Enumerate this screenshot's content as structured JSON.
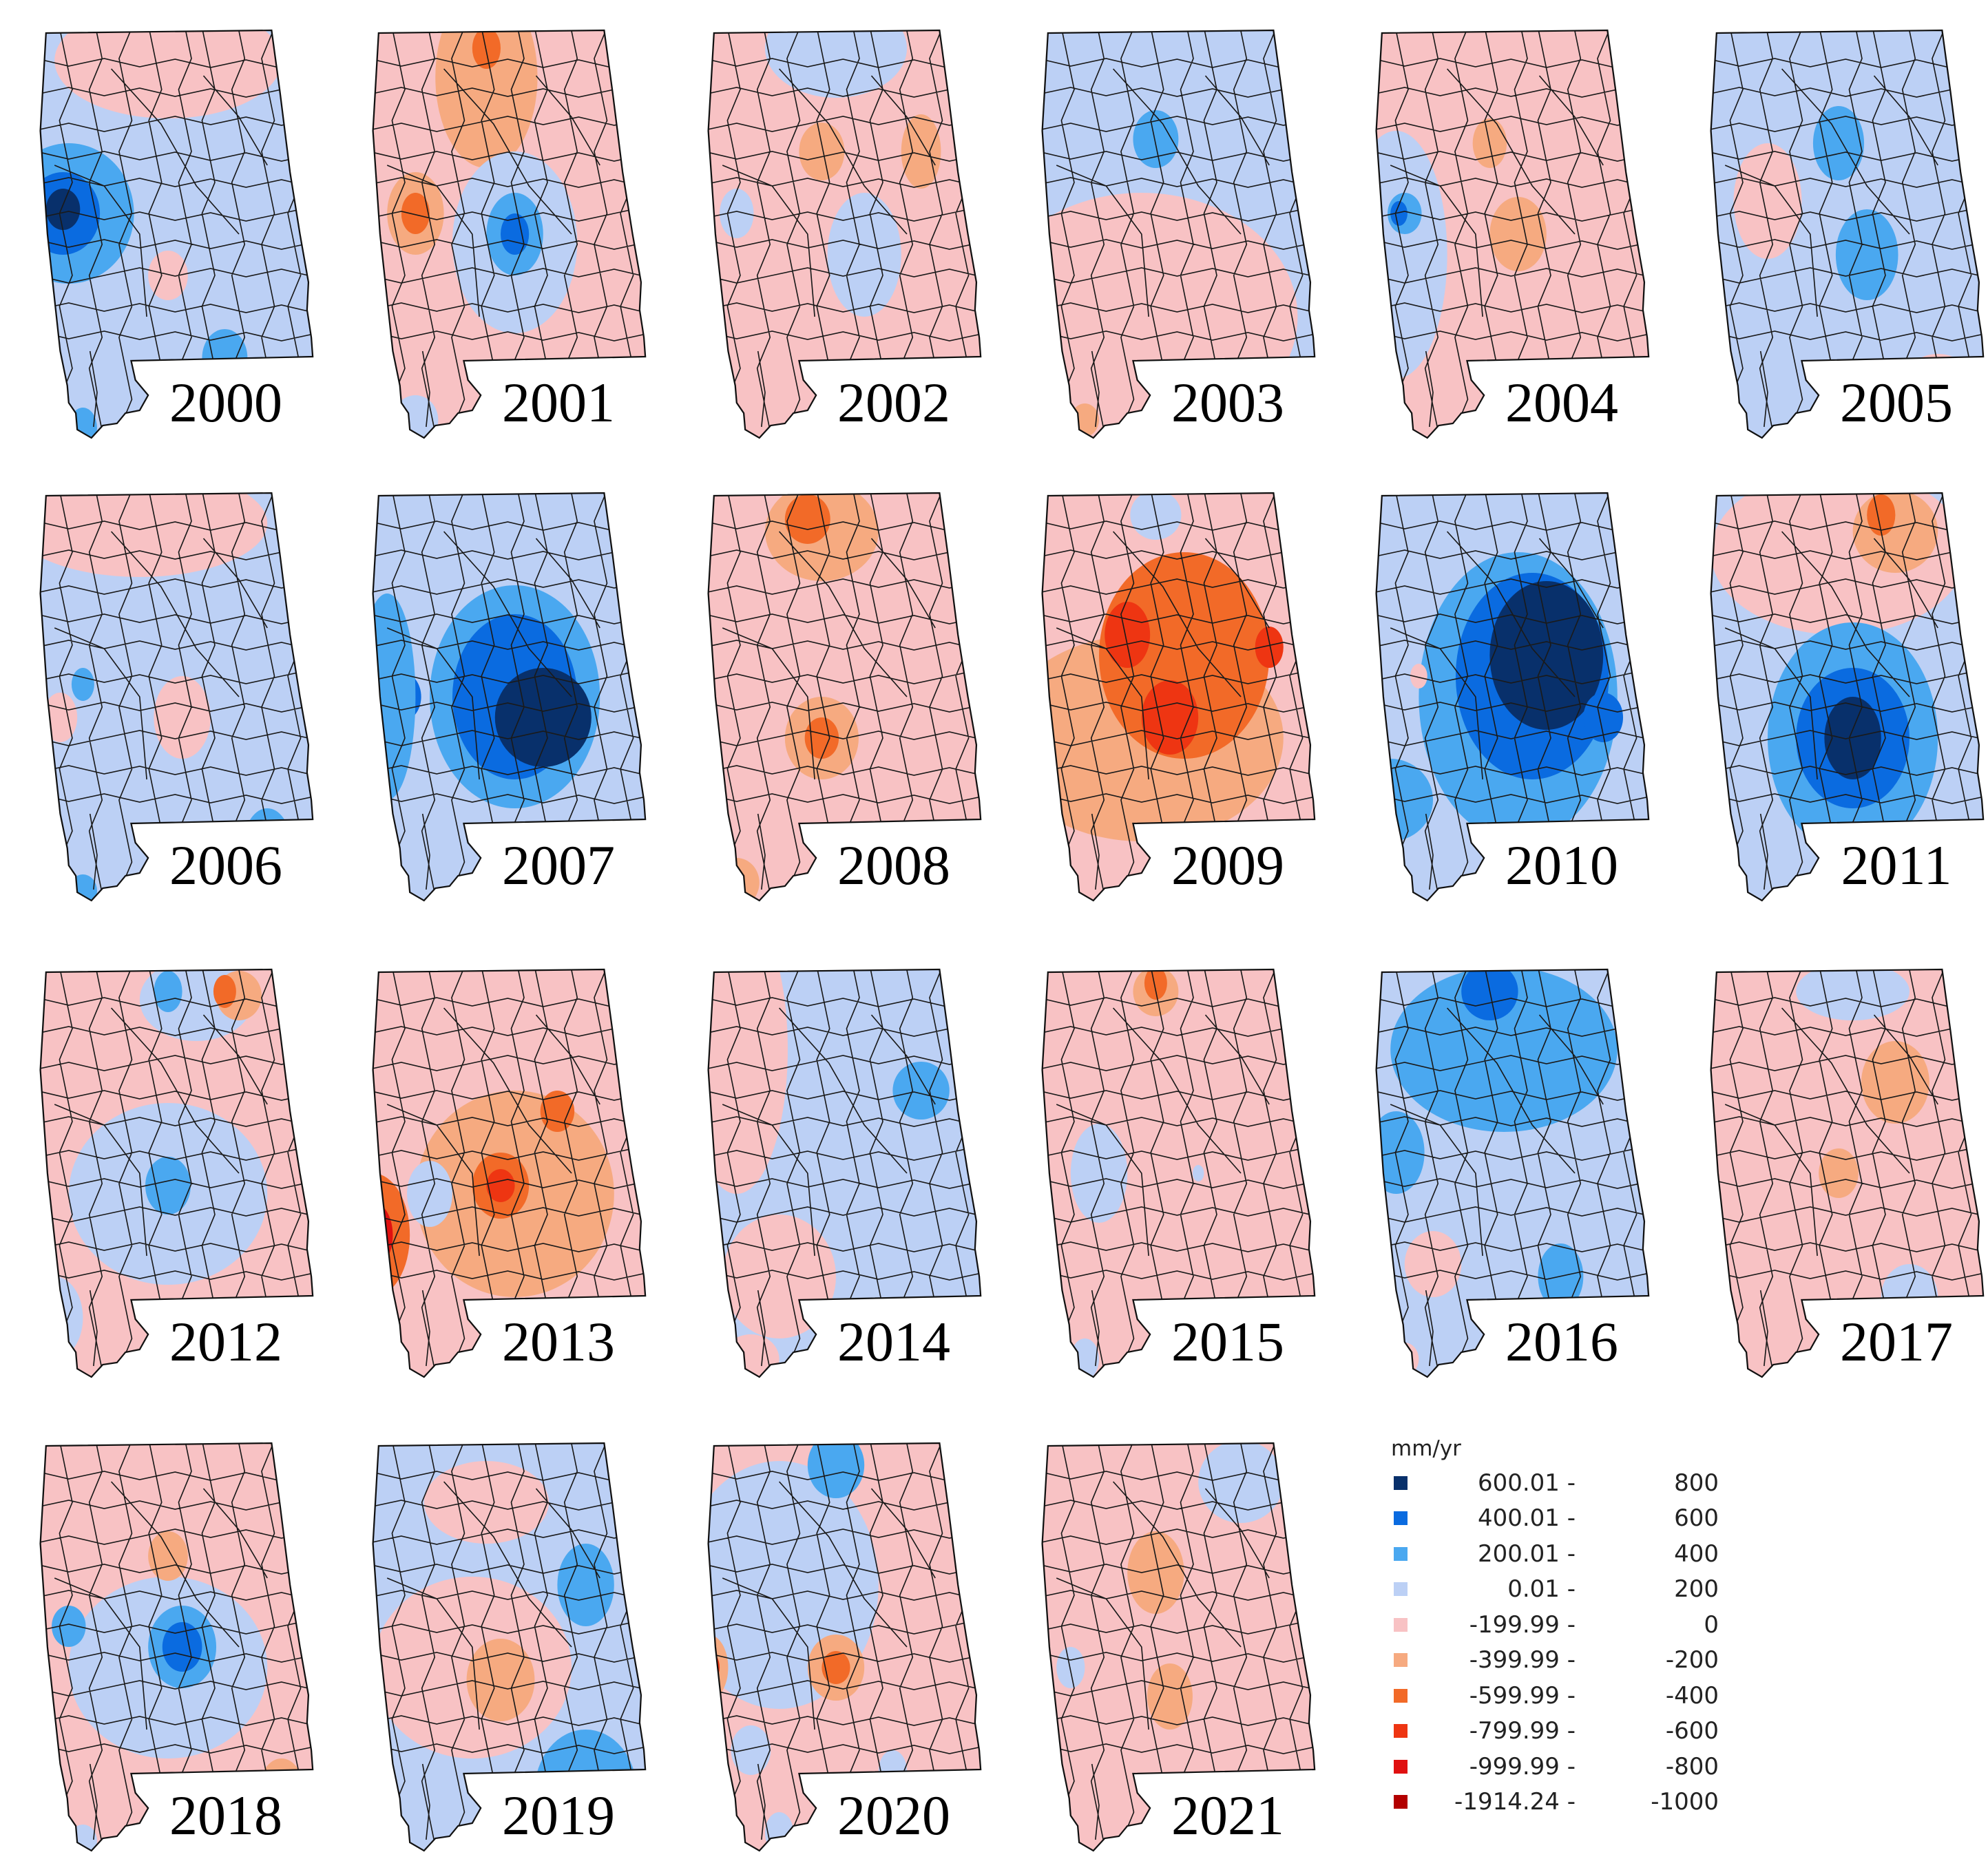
{
  "legend": {
    "title": "mm/yr",
    "entries": [
      {
        "min": "600.01 -",
        "max": "800",
        "color": "#08306b"
      },
      {
        "min": "400.01 -",
        "max": "600",
        "color": "#0a6be0"
      },
      {
        "min": "200.01 -",
        "max": "400",
        "color": "#4aa8f0"
      },
      {
        "min": "0.01 -",
        "max": "200",
        "color": "#bcd0f5"
      },
      {
        "min": "-199.99 -",
        "max": "0",
        "color": "#f8c2c4"
      },
      {
        "min": "-399.99 -",
        "max": "-200",
        "color": "#f6aa80"
      },
      {
        "min": "-599.99 -",
        "max": "-400",
        "color": "#f26a28"
      },
      {
        "min": "-799.99 -",
        "max": "-600",
        "color": "#ee3512"
      },
      {
        "min": "-999.99 -",
        "max": "-800",
        "color": "#e01010"
      },
      {
        "min": "-1914.24 -",
        "max": "-1000",
        "color": "#b30000"
      }
    ]
  },
  "maps": [
    {
      "year": "2000",
      "base": 3,
      "blobs": [
        [
          0.5,
          0.08,
          0.4,
          0.14,
          4
        ],
        [
          0.15,
          0.45,
          0.23,
          0.17,
          2
        ],
        [
          0.13,
          0.45,
          0.13,
          0.1,
          1
        ],
        [
          0.13,
          0.44,
          0.06,
          0.05,
          0
        ],
        [
          0.5,
          0.6,
          0.07,
          0.06,
          4
        ],
        [
          0.7,
          0.8,
          0.08,
          0.07,
          2
        ],
        [
          0.2,
          0.97,
          0.05,
          0.05,
          2
        ]
      ]
    },
    {
      "year": "2001",
      "base": 4,
      "blobs": [
        [
          0.45,
          0.12,
          0.18,
          0.22,
          5
        ],
        [
          0.45,
          0.05,
          0.05,
          0.05,
          6
        ],
        [
          0.2,
          0.45,
          0.1,
          0.1,
          5
        ],
        [
          0.2,
          0.45,
          0.05,
          0.05,
          6
        ],
        [
          0.55,
          0.52,
          0.22,
          0.22,
          3
        ],
        [
          0.55,
          0.5,
          0.1,
          0.1,
          2
        ],
        [
          0.55,
          0.5,
          0.05,
          0.05,
          1
        ],
        [
          0.2,
          0.95,
          0.08,
          0.06,
          3
        ]
      ]
    },
    {
      "year": "2002",
      "base": 4,
      "blobs": [
        [
          0.5,
          0.05,
          0.25,
          0.12,
          3
        ],
        [
          0.45,
          0.3,
          0.08,
          0.07,
          5
        ],
        [
          0.6,
          0.55,
          0.13,
          0.15,
          3
        ],
        [
          0.15,
          0.45,
          0.06,
          0.06,
          3
        ],
        [
          0.8,
          0.3,
          0.07,
          0.09,
          5
        ]
      ]
    },
    {
      "year": "2003",
      "base": 3,
      "blobs": [
        [
          0.4,
          0.7,
          0.55,
          0.3,
          4
        ],
        [
          0.3,
          0.85,
          0.35,
          0.2,
          4
        ],
        [
          0.45,
          0.27,
          0.08,
          0.07,
          2
        ],
        [
          0.8,
          0.85,
          0.05,
          0.05,
          5
        ],
        [
          0.2,
          0.95,
          0.05,
          0.04,
          5
        ]
      ]
    },
    {
      "year": "2004",
      "base": 4,
      "blobs": [
        [
          0.12,
          0.55,
          0.18,
          0.3,
          3
        ],
        [
          0.15,
          0.45,
          0.06,
          0.05,
          2
        ],
        [
          0.13,
          0.45,
          0.03,
          0.03,
          1
        ],
        [
          0.45,
          0.28,
          0.06,
          0.06,
          5
        ],
        [
          0.55,
          0.5,
          0.1,
          0.09,
          5
        ],
        [
          0.8,
          0.85,
          0.05,
          0.05,
          3
        ]
      ]
    },
    {
      "year": "2005",
      "base": 3,
      "blobs": [
        [
          0.25,
          0.42,
          0.12,
          0.14,
          4
        ],
        [
          0.5,
          0.28,
          0.09,
          0.09,
          2
        ],
        [
          0.6,
          0.55,
          0.11,
          0.11,
          2
        ],
        [
          0.85,
          0.86,
          0.12,
          0.07,
          4
        ]
      ]
    },
    {
      "year": "2006",
      "base": 3,
      "blobs": [
        [
          0.4,
          0.08,
          0.45,
          0.13,
          4
        ],
        [
          0.55,
          0.55,
          0.1,
          0.1,
          4
        ],
        [
          0.12,
          0.55,
          0.06,
          0.06,
          4
        ],
        [
          0.2,
          0.47,
          0.04,
          0.04,
          2
        ],
        [
          0.85,
          0.85,
          0.08,
          0.08,
          2
        ],
        [
          0.2,
          0.97,
          0.05,
          0.04,
          2
        ]
      ]
    },
    {
      "year": "2007",
      "base": 3,
      "blobs": [
        [
          0.55,
          0.5,
          0.3,
          0.27,
          2
        ],
        [
          0.55,
          0.5,
          0.22,
          0.2,
          1
        ],
        [
          0.65,
          0.55,
          0.17,
          0.12,
          0
        ],
        [
          0.15,
          0.5,
          0.07,
          0.06,
          1
        ],
        [
          0.1,
          0.5,
          0.1,
          0.25,
          2
        ]
      ]
    },
    {
      "year": "2008",
      "base": 4,
      "blobs": [
        [
          0.45,
          0.1,
          0.2,
          0.12,
          5
        ],
        [
          0.4,
          0.07,
          0.08,
          0.06,
          6
        ],
        [
          0.45,
          0.6,
          0.13,
          0.1,
          5
        ],
        [
          0.45,
          0.6,
          0.06,
          0.05,
          6
        ],
        [
          0.15,
          0.95,
          0.08,
          0.06,
          5
        ],
        [
          0.9,
          0.9,
          0.05,
          0.05,
          6
        ]
      ]
    },
    {
      "year": "2009",
      "base": 4,
      "blobs": [
        [
          0.4,
          0.6,
          0.5,
          0.25,
          5
        ],
        [
          0.55,
          0.4,
          0.3,
          0.25,
          6
        ],
        [
          0.35,
          0.35,
          0.08,
          0.08,
          7
        ],
        [
          0.5,
          0.55,
          0.1,
          0.09,
          7
        ],
        [
          0.85,
          0.38,
          0.05,
          0.05,
          7
        ],
        [
          0.45,
          0.06,
          0.09,
          0.06,
          3
        ],
        [
          0.9,
          0.97,
          0.04,
          0.04,
          3
        ]
      ]
    },
    {
      "year": "2010",
      "base": 3,
      "blobs": [
        [
          0.55,
          0.5,
          0.35,
          0.35,
          2
        ],
        [
          0.6,
          0.45,
          0.27,
          0.25,
          1
        ],
        [
          0.65,
          0.4,
          0.2,
          0.18,
          0
        ],
        [
          0.1,
          0.75,
          0.15,
          0.1,
          2
        ],
        [
          0.2,
          0.45,
          0.03,
          0.03,
          4
        ],
        [
          0.85,
          0.55,
          0.07,
          0.06,
          1
        ]
      ]
    },
    {
      "year": "2011",
      "base": 3,
      "blobs": [
        [
          0.5,
          0.15,
          0.45,
          0.2,
          4
        ],
        [
          0.7,
          0.1,
          0.15,
          0.1,
          5
        ],
        [
          0.65,
          0.06,
          0.05,
          0.05,
          6
        ],
        [
          0.55,
          0.6,
          0.3,
          0.28,
          2
        ],
        [
          0.55,
          0.6,
          0.2,
          0.17,
          1
        ],
        [
          0.55,
          0.6,
          0.1,
          0.1,
          0
        ]
      ]
    },
    {
      "year": "2012",
      "base": 4,
      "blobs": [
        [
          0.5,
          0.55,
          0.35,
          0.22,
          3
        ],
        [
          0.6,
          0.08,
          0.2,
          0.1,
          3
        ],
        [
          0.5,
          0.06,
          0.05,
          0.05,
          2
        ],
        [
          0.75,
          0.07,
          0.08,
          0.06,
          5
        ],
        [
          0.7,
          0.06,
          0.04,
          0.04,
          6
        ],
        [
          0.5,
          0.53,
          0.08,
          0.07,
          2
        ],
        [
          0.1,
          0.85,
          0.1,
          0.1,
          3
        ]
      ]
    },
    {
      "year": "2013",
      "base": 4,
      "blobs": [
        [
          0.55,
          0.55,
          0.35,
          0.25,
          5
        ],
        [
          0.5,
          0.53,
          0.1,
          0.08,
          6
        ],
        [
          0.5,
          0.53,
          0.05,
          0.04,
          7
        ],
        [
          0.05,
          0.65,
          0.13,
          0.15,
          6
        ],
        [
          0.05,
          0.65,
          0.07,
          0.08,
          8
        ],
        [
          0.7,
          0.35,
          0.06,
          0.05,
          6
        ],
        [
          0.25,
          0.55,
          0.08,
          0.08,
          3
        ],
        [
          0.9,
          0.9,
          0.05,
          0.05,
          6
        ]
      ]
    },
    {
      "year": "2014",
      "base": 3,
      "blobs": [
        [
          0.15,
          0.2,
          0.18,
          0.35,
          4
        ],
        [
          0.3,
          0.75,
          0.2,
          0.15,
          4
        ],
        [
          0.8,
          0.3,
          0.1,
          0.07,
          2
        ],
        [
          0.2,
          0.95,
          0.1,
          0.06,
          4
        ]
      ]
    },
    {
      "year": "2015",
      "base": 4,
      "blobs": [
        [
          0.45,
          0.06,
          0.08,
          0.06,
          5
        ],
        [
          0.45,
          0.04,
          0.04,
          0.04,
          6
        ],
        [
          0.25,
          0.5,
          0.1,
          0.12,
          3
        ],
        [
          0.2,
          0.95,
          0.05,
          0.05,
          3
        ],
        [
          0.6,
          0.5,
          0.02,
          0.02,
          3
        ]
      ]
    },
    {
      "year": "2016",
      "base": 3,
      "blobs": [
        [
          0.5,
          0.2,
          0.4,
          0.2,
          2
        ],
        [
          0.45,
          0.06,
          0.1,
          0.07,
          1
        ],
        [
          0.12,
          0.45,
          0.1,
          0.1,
          2
        ],
        [
          0.25,
          0.72,
          0.1,
          0.08,
          4
        ],
        [
          0.7,
          0.75,
          0.08,
          0.08,
          2
        ],
        [
          0.15,
          0.95,
          0.05,
          0.04,
          4
        ]
      ]
    },
    {
      "year": "2017",
      "base": 4,
      "blobs": [
        [
          0.55,
          0.06,
          0.2,
          0.07,
          3
        ],
        [
          0.7,
          0.28,
          0.12,
          0.1,
          5
        ],
        [
          0.5,
          0.5,
          0.07,
          0.06,
          5
        ],
        [
          0.75,
          0.8,
          0.1,
          0.08,
          3
        ]
      ]
    },
    {
      "year": "2018",
      "base": 4,
      "blobs": [
        [
          0.5,
          0.55,
          0.35,
          0.22,
          3
        ],
        [
          0.55,
          0.5,
          0.12,
          0.1,
          2
        ],
        [
          0.55,
          0.5,
          0.07,
          0.06,
          1
        ],
        [
          0.5,
          0.28,
          0.07,
          0.06,
          5
        ],
        [
          0.15,
          0.45,
          0.06,
          0.05,
          2
        ],
        [
          0.9,
          0.85,
          0.08,
          0.08,
          5
        ],
        [
          0.95,
          0.92,
          0.04,
          0.04,
          7
        ],
        [
          0.2,
          0.97,
          0.05,
          0.04,
          3
        ]
      ]
    },
    {
      "year": "2019",
      "base": 3,
      "blobs": [
        [
          0.4,
          0.55,
          0.35,
          0.22,
          4
        ],
        [
          0.45,
          0.15,
          0.22,
          0.1,
          4
        ],
        [
          0.5,
          0.58,
          0.12,
          0.1,
          5
        ],
        [
          0.8,
          0.35,
          0.1,
          0.1,
          2
        ],
        [
          0.8,
          0.85,
          0.18,
          0.15,
          2
        ],
        [
          0.9,
          0.88,
          0.08,
          0.07,
          1
        ]
      ]
    },
    {
      "year": "2020",
      "base": 4,
      "blobs": [
        [
          0.3,
          0.35,
          0.35,
          0.3,
          3
        ],
        [
          0.5,
          0.06,
          0.1,
          0.08,
          2
        ],
        [
          0.5,
          0.55,
          0.1,
          0.08,
          5
        ],
        [
          0.5,
          0.55,
          0.05,
          0.04,
          6
        ],
        [
          0.05,
          0.55,
          0.07,
          0.08,
          5
        ],
        [
          0.05,
          0.55,
          0.04,
          0.04,
          7
        ],
        [
          0.2,
          0.75,
          0.07,
          0.06,
          3
        ],
        [
          0.7,
          0.8,
          0.05,
          0.05,
          3
        ],
        [
          0.3,
          0.95,
          0.05,
          0.05,
          3
        ]
      ]
    },
    {
      "year": "2021",
      "base": 4,
      "blobs": [
        [
          0.75,
          0.1,
          0.15,
          0.1,
          3
        ],
        [
          0.45,
          0.32,
          0.1,
          0.1,
          5
        ],
        [
          0.5,
          0.62,
          0.08,
          0.08,
          5
        ],
        [
          0.15,
          0.55,
          0.05,
          0.05,
          3
        ],
        [
          0.9,
          0.95,
          0.05,
          0.05,
          5
        ]
      ]
    }
  ]
}
